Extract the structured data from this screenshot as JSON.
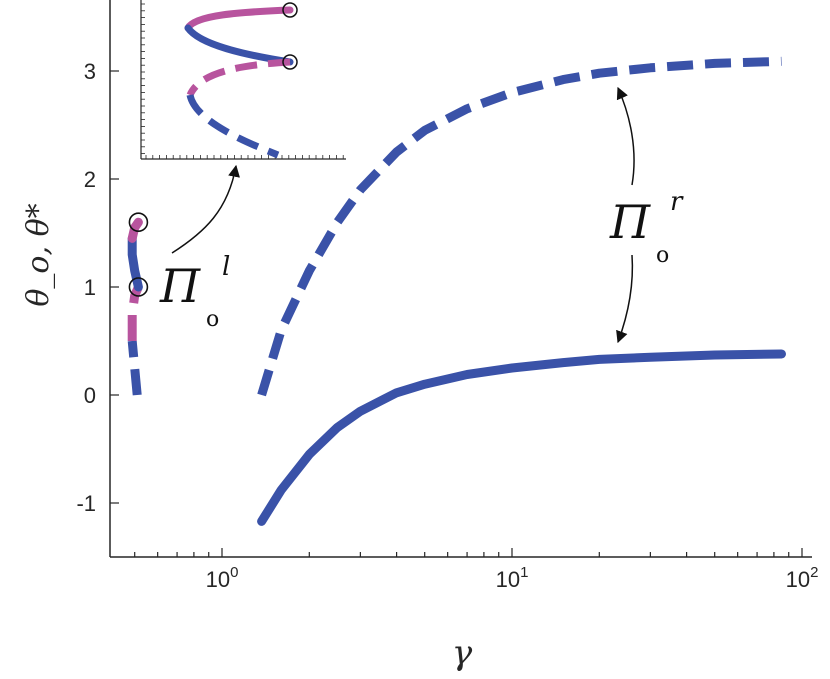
{
  "chart_data": {
    "type": "line",
    "xscale": "log",
    "xlim": [
      0.4,
      100
    ],
    "ylim": [
      -1.5,
      3.5
    ],
    "xlabel": "γ",
    "ylabel": "θ_o, θ*",
    "x_ticks": [
      {
        "base": "10",
        "exp": "0"
      },
      {
        "base": "10",
        "exp": "1"
      },
      {
        "base": "10",
        "exp": "2"
      }
    ],
    "y_ticks": [
      "-1",
      "0",
      "1",
      "2",
      "3"
    ],
    "colors": {
      "blue": "#3a52a8",
      "magenta": "#b8549e"
    },
    "series": [
      {
        "style": "dashed",
        "color": "blue",
        "points": [
          [
            1.37,
            0.0
          ],
          [
            1.6,
            0.6
          ],
          [
            2,
            1.15
          ],
          [
            2.5,
            1.6
          ],
          [
            3,
            1.9
          ],
          [
            4,
            2.25
          ],
          [
            5,
            2.45
          ],
          [
            7,
            2.65
          ],
          [
            10,
            2.8
          ],
          [
            15,
            2.92
          ],
          [
            20,
            2.98
          ],
          [
            30,
            3.03
          ],
          [
            50,
            3.07
          ],
          [
            85,
            3.09
          ]
        ]
      },
      {
        "style": "solid",
        "color": "blue",
        "points": [
          [
            1.37,
            -1.17
          ],
          [
            1.6,
            -0.88
          ],
          [
            2,
            -0.55
          ],
          [
            2.5,
            -0.3
          ],
          [
            3,
            -0.15
          ],
          [
            4,
            0.02
          ],
          [
            5,
            0.1
          ],
          [
            7,
            0.19
          ],
          [
            10,
            0.25
          ],
          [
            15,
            0.3
          ],
          [
            20,
            0.33
          ],
          [
            30,
            0.35
          ],
          [
            50,
            0.37
          ],
          [
            85,
            0.38
          ]
        ]
      },
      {
        "style": "dashed",
        "color": "blue",
        "points": [
          [
            0.51,
            0.0
          ],
          [
            0.5,
            0.25
          ],
          [
            0.49,
            0.5
          ]
        ]
      },
      {
        "style": "dashed",
        "color": "magenta",
        "points": [
          [
            0.49,
            0.5
          ],
          [
            0.49,
            0.75
          ],
          [
            0.5,
            0.92
          ],
          [
            0.515,
            1.0
          ]
        ]
      },
      {
        "style": "solid",
        "color": "blue",
        "points": [
          [
            0.515,
            1.0
          ],
          [
            0.5,
            1.15
          ],
          [
            0.49,
            1.3
          ],
          [
            0.49,
            1.45
          ]
        ]
      },
      {
        "style": "solid",
        "color": "magenta",
        "points": [
          [
            0.49,
            1.45
          ],
          [
            0.5,
            1.55
          ],
          [
            0.515,
            1.6
          ]
        ]
      }
    ],
    "markers": [
      [
        0.515,
        1.0
      ],
      [
        0.515,
        1.6
      ]
    ],
    "annotations": [
      {
        "main": "Π",
        "sub": "o",
        "sup": "l"
      },
      {
        "main": "Π",
        "sub": "o",
        "sup": "r"
      }
    ]
  }
}
